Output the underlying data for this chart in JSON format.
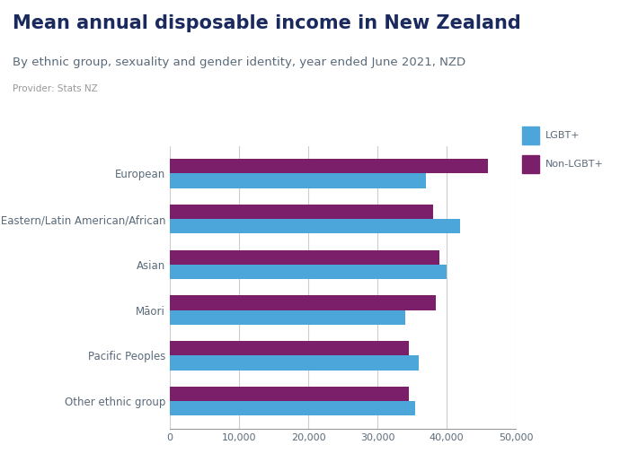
{
  "title": "Mean annual disposable income in New Zealand",
  "subtitle": "By ethnic group, sexuality and gender identity, year ended June 2021, NZD",
  "provider": "Provider: Stats NZ",
  "categories": [
    "European",
    "Middle Eastern/Latin American/African",
    "Asian",
    "Māori",
    "Pacific Peoples",
    "Other ethnic group"
  ],
  "lgbt_values": [
    37000,
    42000,
    40000,
    34000,
    36000,
    35500
  ],
  "non_lgbt_values": [
    46000,
    38000,
    39000,
    38500,
    34500,
    34500
  ],
  "lgbt_color": "#4da6d9",
  "non_lgbt_color": "#7b1f6b",
  "background_color": "#ffffff",
  "logo_bg_color": "#2d4a9e",
  "xlim": [
    0,
    50000
  ],
  "xticks": [
    0,
    10000,
    20000,
    30000,
    40000,
    50000
  ],
  "legend_labels": [
    "LGBT+",
    "Non-LGBT+"
  ],
  "title_fontsize": 15,
  "subtitle_fontsize": 9.5,
  "provider_fontsize": 7.5,
  "bar_height": 0.32,
  "figsize": [
    7.0,
    5.25
  ],
  "dpi": 100
}
